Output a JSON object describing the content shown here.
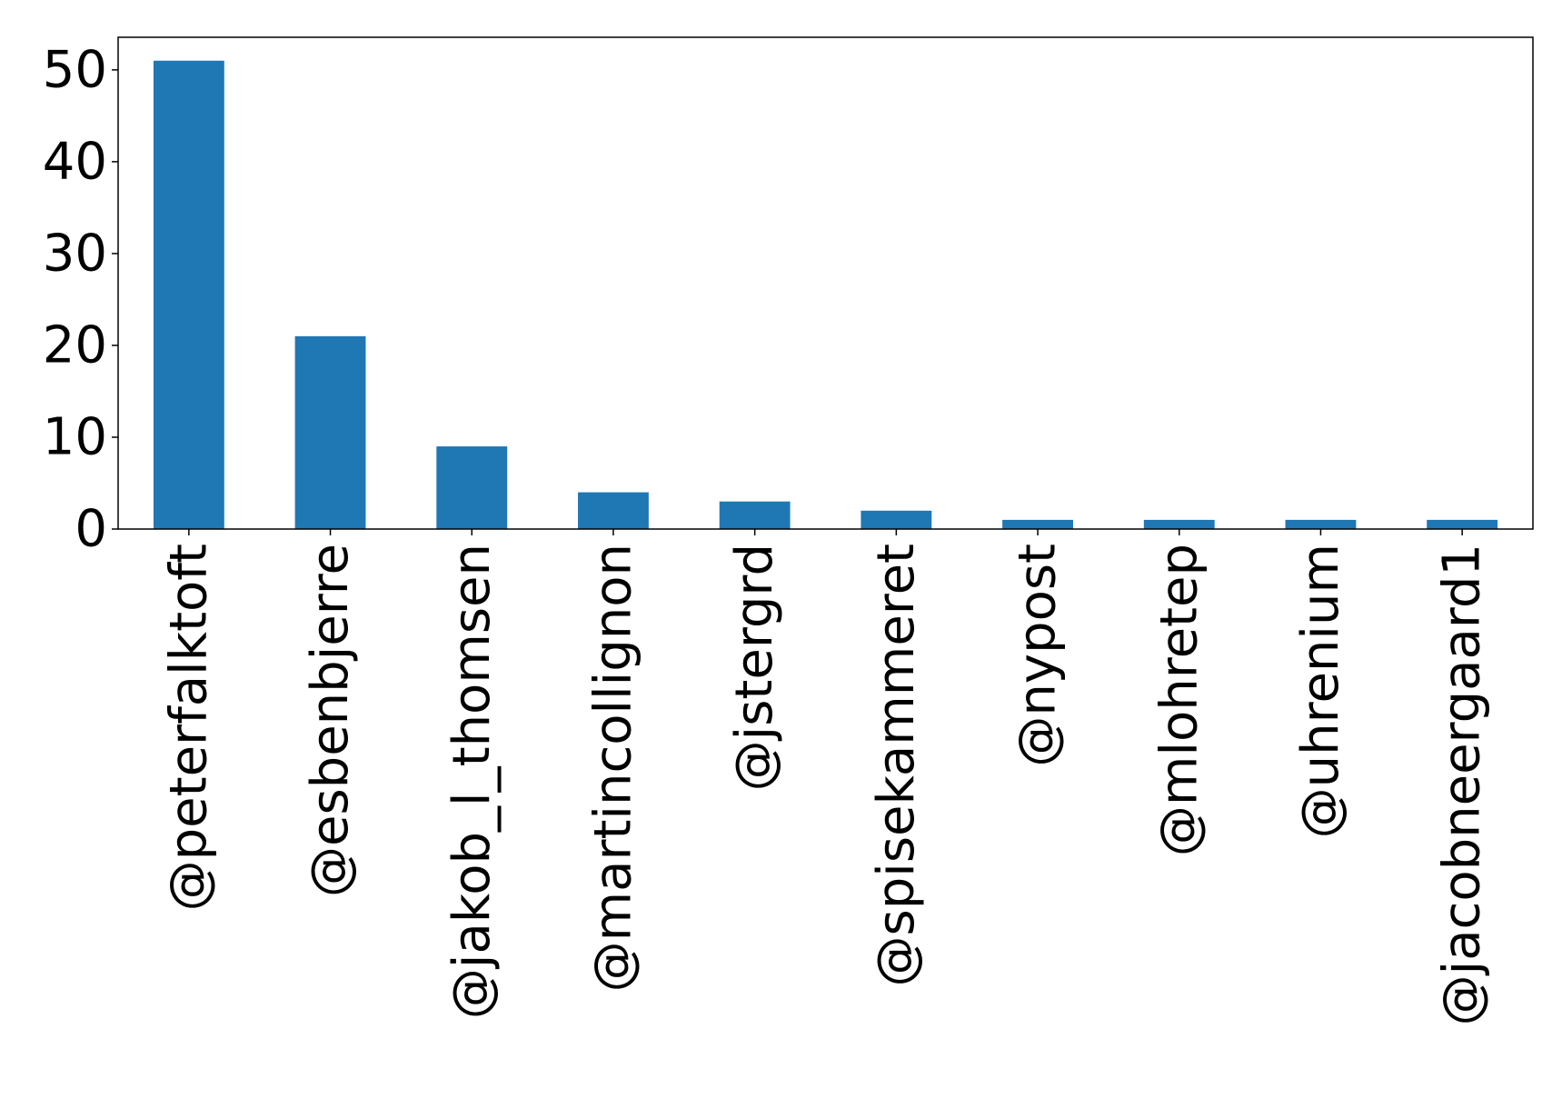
{
  "chart_data": {
    "type": "bar",
    "title": "",
    "xlabel": "",
    "ylabel": "",
    "categories": [
      "@peterfalktoft",
      "@esbenbjerre",
      "@jakob_l_thomsen",
      "@martincollignon",
      "@jstergrd",
      "@spisekammeret",
      "@nypost",
      "@mlohretep",
      "@uhrenium",
      "@jacobneergaard1"
    ],
    "values": [
      51,
      21,
      9,
      4,
      3,
      2,
      1,
      1,
      1,
      1
    ],
    "ylim": [
      0,
      53.55
    ],
    "yticks": [
      0,
      10,
      20,
      30,
      40,
      50
    ],
    "bar_color": "#1f77b4",
    "grid": false,
    "legend": "none"
  }
}
